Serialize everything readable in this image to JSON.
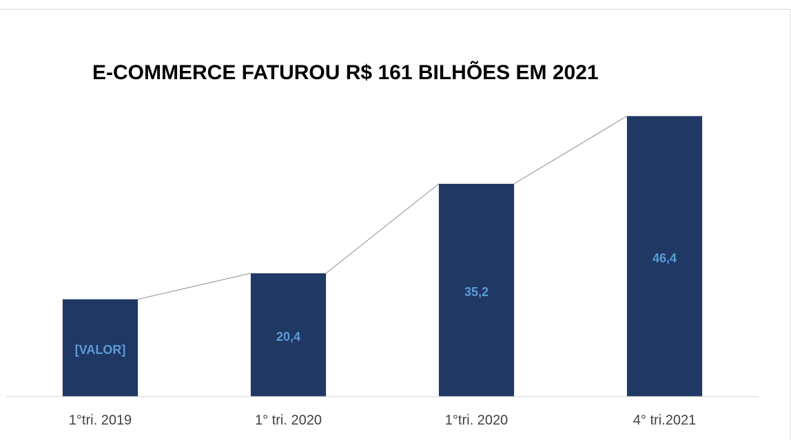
{
  "chart_data": {
    "type": "bar",
    "title": "E-COMMERCE FATUROU R$ 161 BILHÕES EM 2021",
    "categories": [
      "1°tri. 2019",
      "1° tri. 2020",
      "1°tri. 2020",
      "4° tri.2021"
    ],
    "values": [
      16.1,
      20.4,
      35.2,
      46.4
    ],
    "value_labels": [
      "[VALOR]",
      "20,4",
      "35,2",
      "46,4"
    ],
    "color": "#203864",
    "ylim": [
      0,
      50
    ]
  }
}
